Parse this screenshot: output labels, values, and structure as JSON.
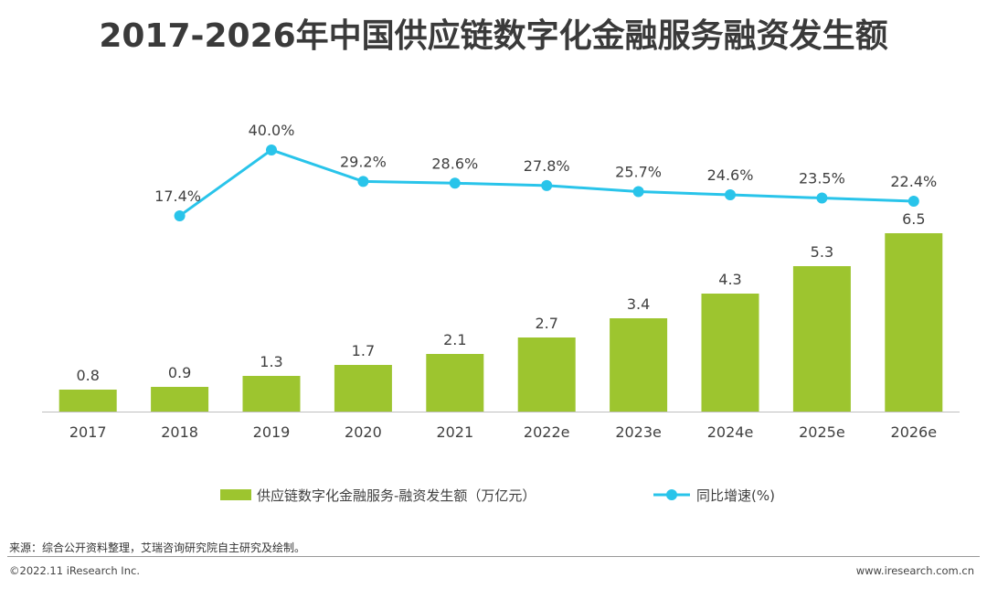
{
  "chart_data": {
    "type": "bar",
    "title": "2017-2026年中国供应链数字化金融服务融资发生额",
    "categories": [
      "2017",
      "2018",
      "2019",
      "2020",
      "2021",
      "2022e",
      "2023e",
      "2024e",
      "2025e",
      "2026e"
    ],
    "series": [
      {
        "name": "供应链数字化金融服务-融资发生额（万亿元）",
        "type": "bar",
        "color": "#9dc52f",
        "values": [
          0.8,
          0.9,
          1.3,
          1.7,
          2.1,
          2.7,
          3.4,
          4.3,
          5.3,
          6.5
        ],
        "labels": [
          "0.8",
          "0.9",
          "1.3",
          "1.7",
          "2.1",
          "2.7",
          "3.4",
          "4.3",
          "5.3",
          "6.5"
        ]
      },
      {
        "name": "同比增速(%)",
        "type": "line",
        "color": "#29c4ea",
        "values": [
          null,
          17.4,
          40.0,
          29.2,
          28.6,
          27.8,
          25.7,
          24.6,
          23.5,
          22.4
        ],
        "labels": [
          "",
          "17.4%",
          "40.0%",
          "29.2%",
          "28.6%",
          "27.8%",
          "25.7%",
          "24.6%",
          "23.5%",
          "22.4%"
        ]
      }
    ],
    "xlabel": "",
    "ylabel": "",
    "legend_position": "bottom-center"
  },
  "footer": {
    "source": "来源：综合公开资料整理，艾瑞咨询研究院自主研究及绘制。",
    "copyright": "©2022.11 iResearch Inc.",
    "url": "www.iresearch.com.cn"
  }
}
